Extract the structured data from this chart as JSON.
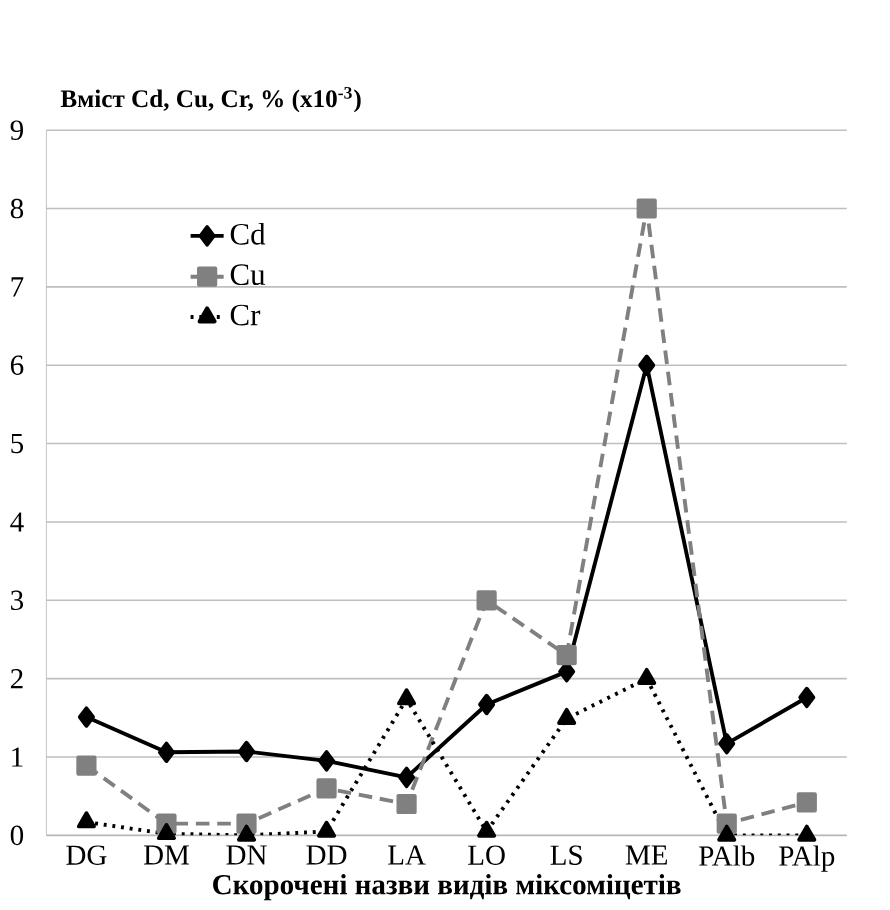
{
  "chart_data": {
    "type": "line",
    "ylabel": "Вміст Cd,  Cu, Cr, % (x10$^{-3}$)",
    "xlabel": "Скорочені назви видів міксоміцетів",
    "categories": [
      "DG",
      "DM",
      "DN",
      "DD",
      "LA",
      "LO",
      "LS",
      "ME",
      "PAlb",
      "PAlp"
    ],
    "series": [
      {
        "name": "Cd",
        "color": "#000000",
        "marker": "diamond",
        "line_style": "solid",
        "values": [
          1.51,
          1.06,
          1.07,
          0.95,
          0.74,
          1.67,
          2.09,
          6.0,
          1.17,
          1.76
        ]
      },
      {
        "name": "Cu",
        "color": "#808080",
        "marker": "square",
        "line_style": "dashed",
        "values": [
          0.89,
          0.15,
          0.15,
          0.6,
          0.4,
          3.0,
          2.3,
          8.0,
          0.15,
          0.42
        ]
      },
      {
        "name": "Cr",
        "color": "#000000",
        "marker": "triangle",
        "line_style": "dotted",
        "values": [
          0.17,
          0.02,
          0.0,
          0.05,
          1.74,
          0.05,
          1.49,
          2.0,
          0.0,
          0.0
        ]
      }
    ],
    "ylim": [
      0,
      9
    ],
    "yticks": [
      0,
      1,
      2,
      3,
      4,
      5,
      6,
      7,
      8,
      9
    ],
    "grid": "y",
    "legend": "top left"
  }
}
